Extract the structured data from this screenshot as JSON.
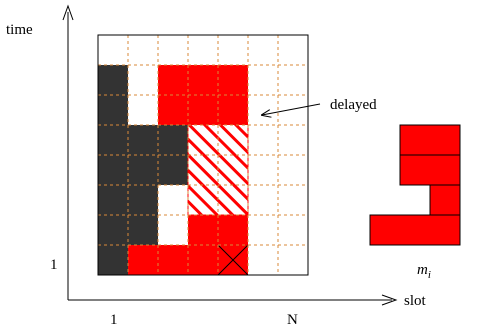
{
  "axes": {
    "y_label": "time",
    "x_label": "slot",
    "y_tick": "1",
    "x_tick_start": "1",
    "x_tick_end": "N"
  },
  "annotation": {
    "delayed": "delayed"
  },
  "stack_label": {
    "base": "m",
    "sub": "i"
  },
  "colors": {
    "red": "#ff0000",
    "dark": "#333333",
    "grid": "#d98a3a",
    "hatch_red": "#ff0000",
    "outline": "#000000"
  },
  "grid": {
    "columns": 7,
    "rows": 8
  }
}
